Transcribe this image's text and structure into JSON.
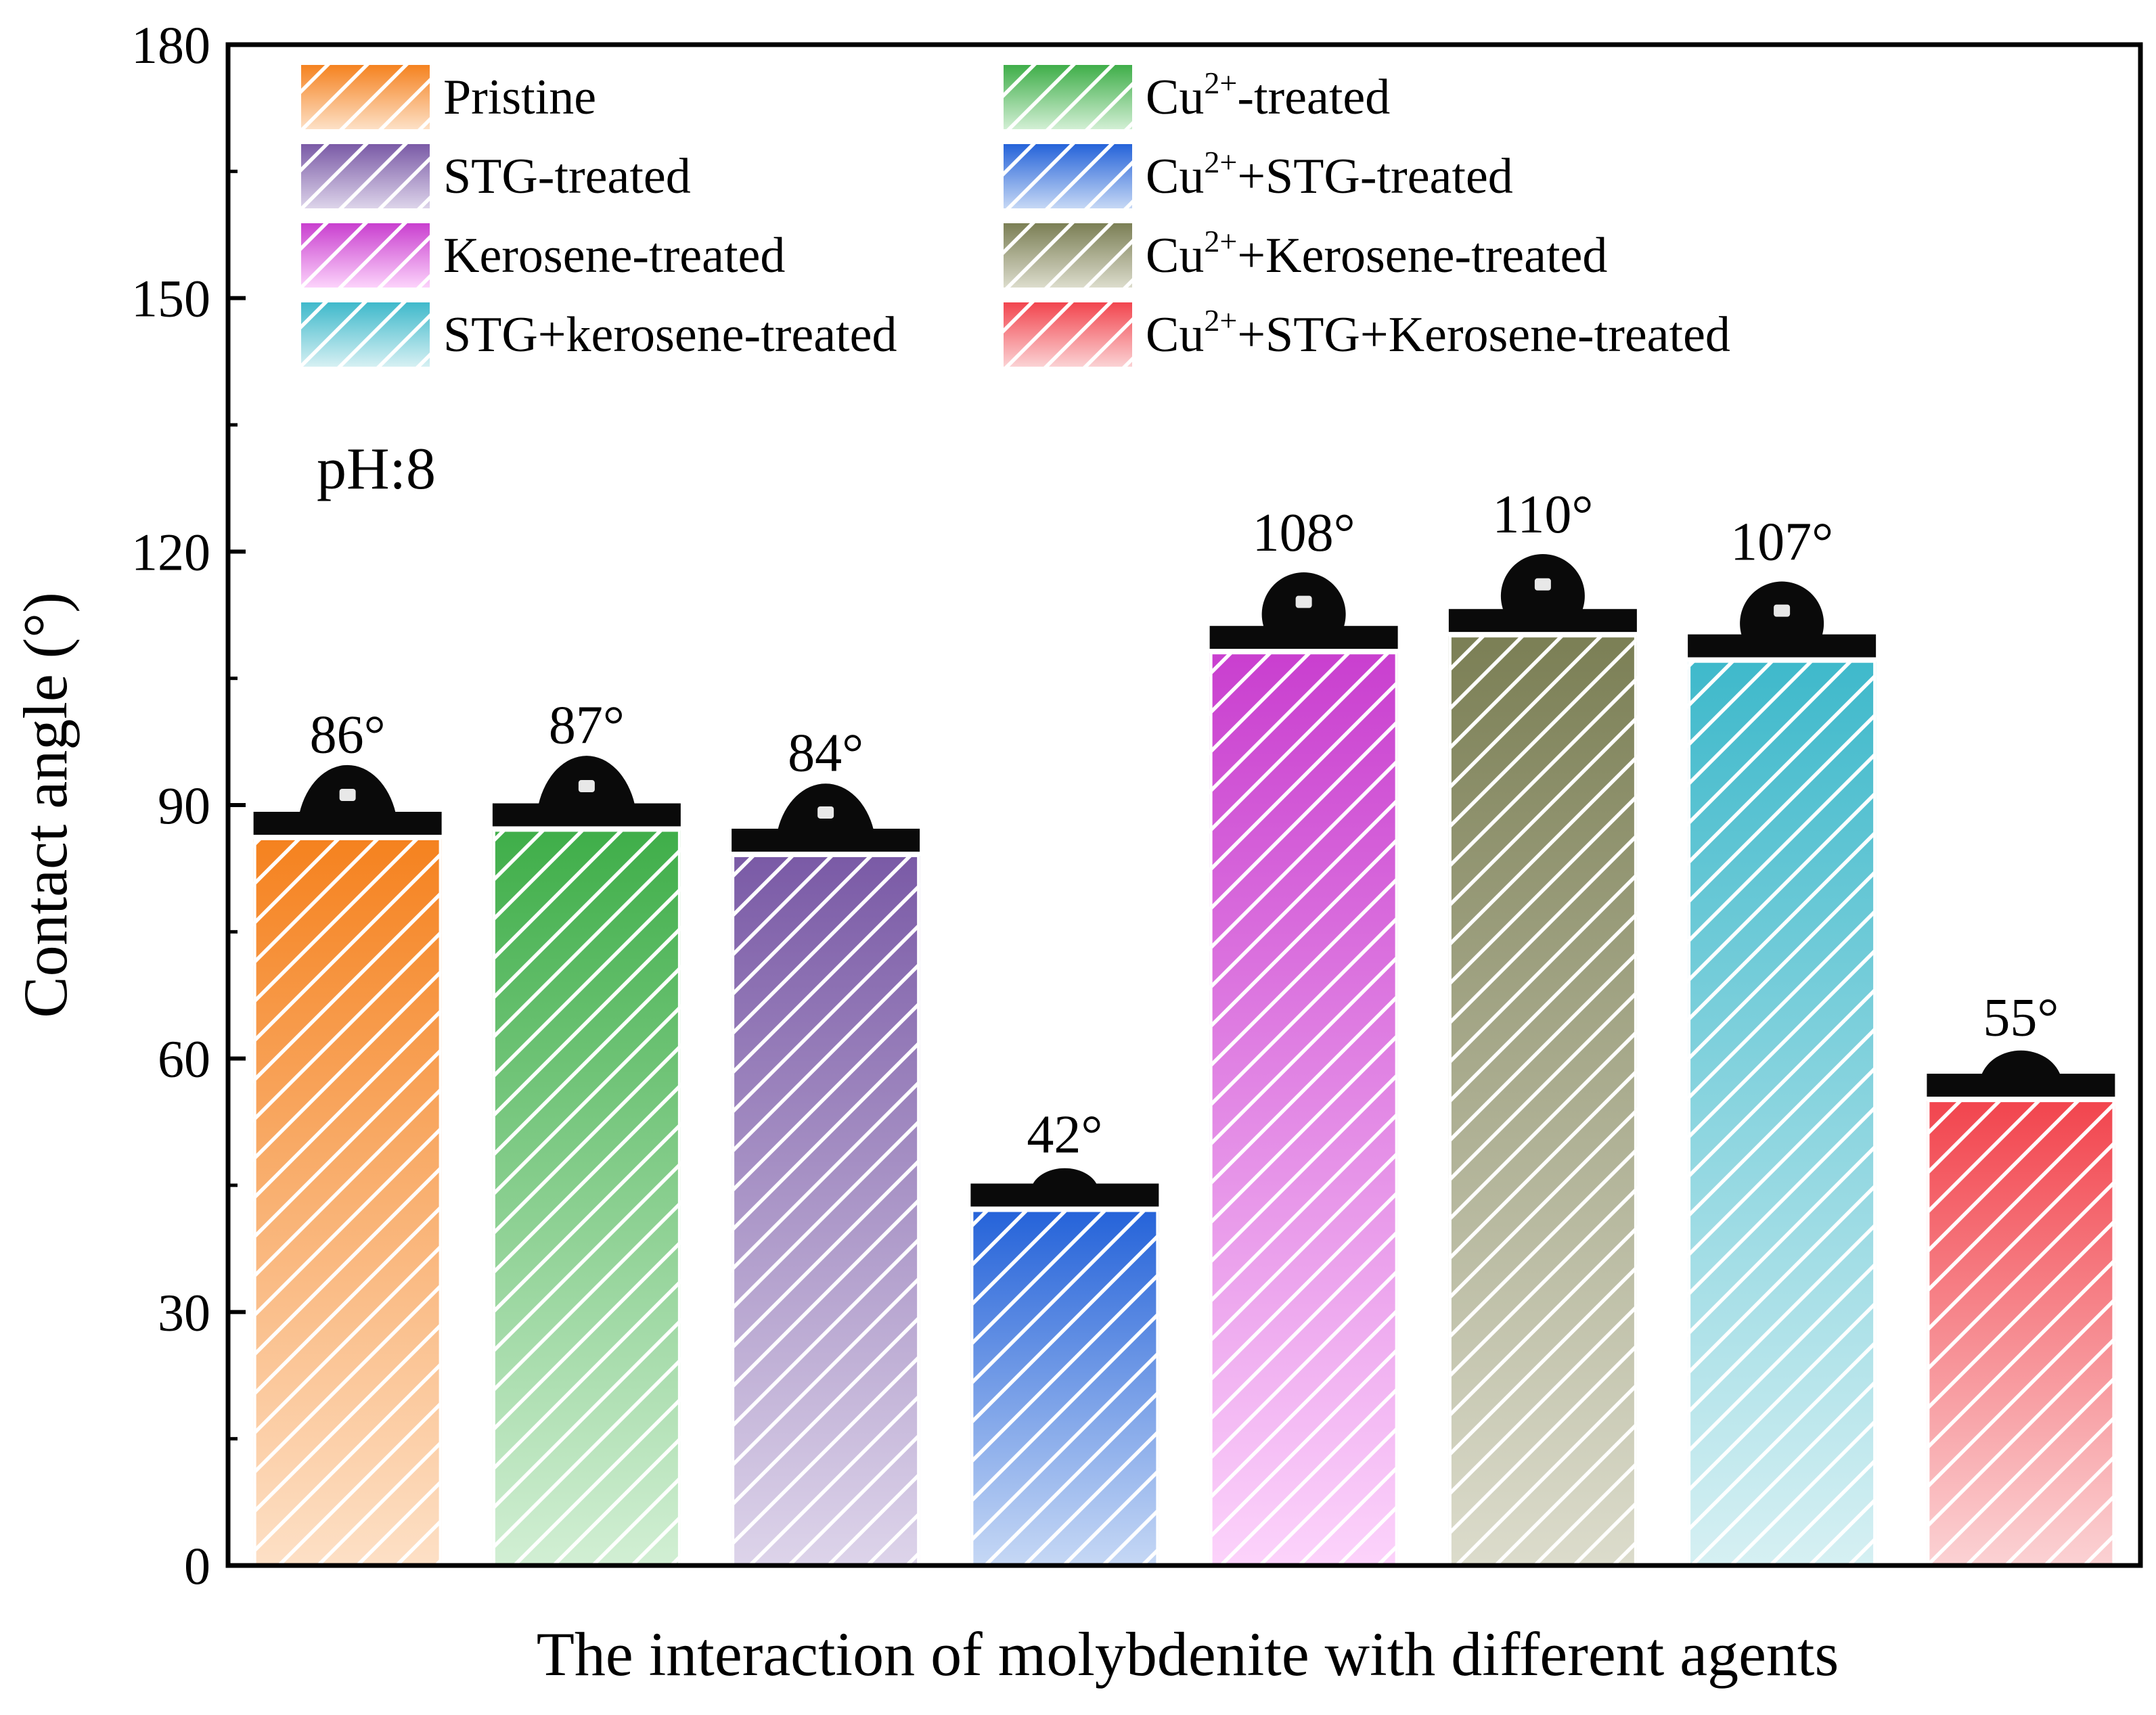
{
  "chart_data": {
    "type": "bar",
    "title": "",
    "xlabel": "The interaction of molybdenite with different agents",
    "ylabel": "Contact angle (°)",
    "ylim": [
      0,
      180
    ],
    "yticks": [
      "0",
      "30",
      "60",
      "90",
      "120",
      "150",
      "180"
    ],
    "annotation": "pH:8",
    "grid": false,
    "legend_position": "top",
    "categories": [
      "Pristine",
      "Cu2+-treated",
      "STG-treated",
      "Cu2++STG-treated",
      "Kerosene-treated",
      "Cu2++Kerosene-treated",
      "STG+kerosene-treated",
      "Cu2++STG+Kerosene-treated"
    ],
    "values": [
      86,
      87,
      84,
      42,
      108,
      110,
      107,
      55
    ],
    "value_labels": [
      "86°",
      "87°",
      "84°",
      "42°",
      "108°",
      "110°",
      "107°",
      "55°"
    ],
    "colors": [
      "#f5821f",
      "#3fae49",
      "#7a5aa6",
      "#2563d9",
      "#c93fcf",
      "#7b7f55",
      "#3fb9cb",
      "#f2454e"
    ],
    "light_colors": [
      "#fde0c6",
      "#d2efd4",
      "#ddd4ea",
      "#c6d8f5",
      "#fcd3fb",
      "#dcdccc",
      "#d6f0f3",
      "#fbd2d4"
    ],
    "legend": [
      {
        "series": 0,
        "main": "Pristine"
      },
      {
        "series": 1,
        "pre": "Cu",
        "sup": "2+",
        "post": "-treated"
      },
      {
        "series": 2,
        "main": "STG-treated"
      },
      {
        "series": 3,
        "pre": "Cu",
        "sup": "2+",
        "post": "+STG-treated"
      },
      {
        "series": 4,
        "main": "Kerosene-treated"
      },
      {
        "series": 5,
        "pre": "Cu",
        "sup": "2+",
        "post": "+Kerosene-treated"
      },
      {
        "series": 6,
        "main": "STG+kerosene-treated"
      },
      {
        "series": 7,
        "pre": "Cu",
        "sup": "2+",
        "post": "+STG+Kerosene-treated"
      }
    ]
  }
}
